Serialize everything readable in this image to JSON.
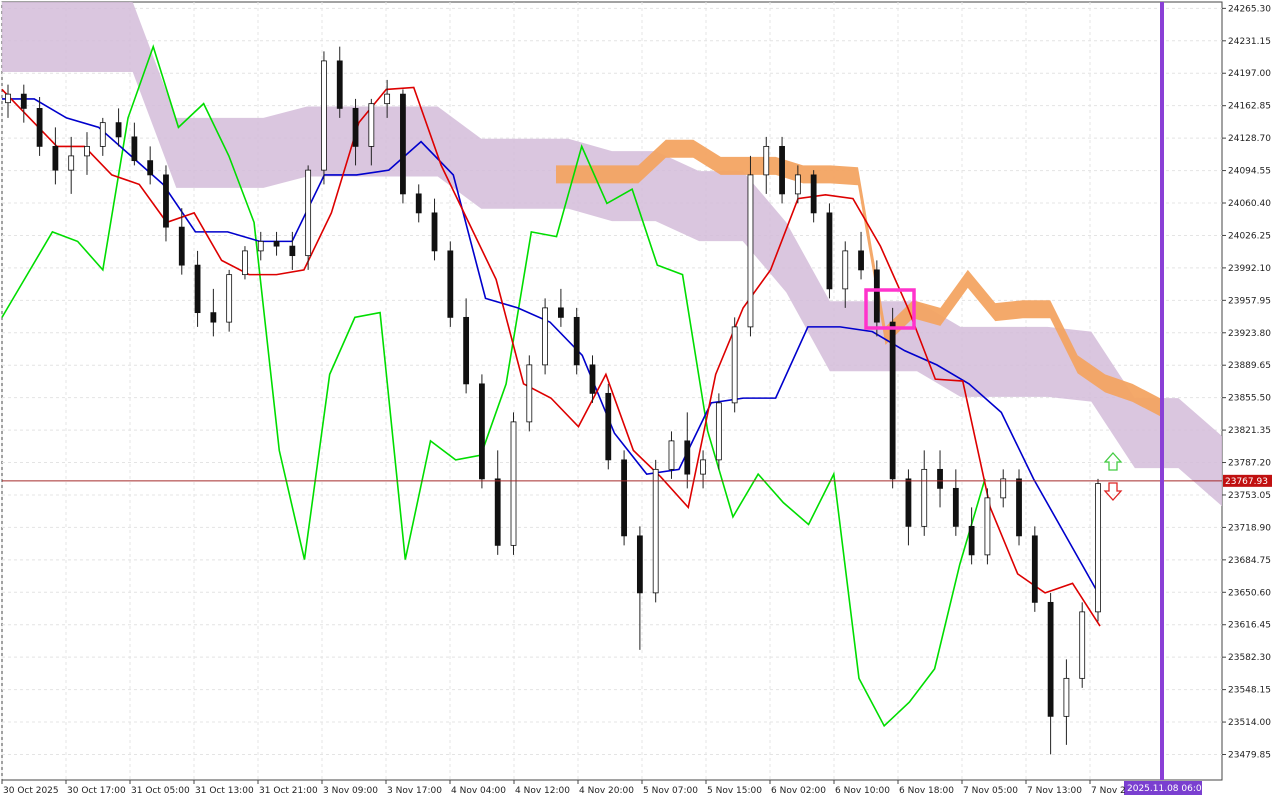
{
  "chart_data": {
    "type": "candlestick",
    "title": "",
    "y_axis_ticks": [
      "24265.30",
      "24231.15",
      "24197.00",
      "24162.85",
      "24128.70",
      "24094.55",
      "24060.40",
      "24026.25",
      "23992.10",
      "23957.95",
      "23923.80",
      "23889.65",
      "23855.50",
      "23821.35",
      "23787.20",
      "23753.05",
      "23718.90",
      "23684.75",
      "23650.60",
      "23616.45",
      "23582.30",
      "23548.15",
      "23514.00",
      "23479.85"
    ],
    "ylim": [
      23453,
      24272
    ],
    "x_axis_ticks": [
      "30 Oct 2025",
      "30 Oct 17:00",
      "31 Oct 05:00",
      "31 Oct 13:00",
      "31 Oct 21:00",
      "3 Nov 09:00",
      "3 Nov 17:00",
      "4 Nov 04:00",
      "4 Nov 12:00",
      "4 Nov 20:00",
      "5 Nov 07:00",
      "5 Nov 15:00",
      "6 Nov 02:00",
      "6 Nov 10:00",
      "6 Nov 18:00",
      "7 Nov 05:00",
      "7 Nov 13:00",
      "7 Nov 2"
    ],
    "current_price": "23767.93",
    "cursor_time_label": "2025.11.08 06:00",
    "grid": true,
    "series": [
      {
        "name": "tenkan",
        "color": "#dd0000",
        "values": [
          24180,
          24150,
          24120,
          24120,
          24090,
          24080,
          24040,
          24050,
          24000,
          23985,
          23985,
          23990,
          24050,
          24145,
          24180,
          24182,
          24100,
          24040,
          23980,
          23870,
          23855,
          23825,
          23880,
          23800,
          23772,
          23740,
          23880,
          23950,
          23990,
          24065,
          24069,
          24065,
          24015,
          23950,
          23875,
          23873,
          23740,
          23670,
          23650,
          23660,
          23615
        ]
      },
      {
        "name": "kijun",
        "color": "#0000cc",
        "values": [
          24170,
          24170,
          24150,
          24140,
          24110,
          24080,
          24030,
          24030,
          24020,
          24020,
          24090,
          24090,
          24095,
          24125,
          24090,
          23960,
          23950,
          23935,
          23900,
          23818,
          23775,
          23780,
          23850,
          23855,
          23855,
          23930,
          23930,
          23925,
          23905,
          23890,
          23870,
          23840,
          23770,
          23710,
          23650
        ]
      },
      {
        "name": "chikou",
        "color": "#00dd00",
        "values": [
          23940,
          23985,
          24030,
          24020,
          23990,
          24150,
          24225,
          24140,
          24165,
          24110,
          24040,
          23800,
          23685,
          23880,
          23940,
          23945,
          23685,
          23810,
          23790,
          23795,
          23870,
          24030,
          24025,
          24120,
          24060,
          24075,
          23995,
          23985,
          23820,
          23730,
          23775,
          23745,
          23722,
          23775,
          23560,
          23510,
          23535,
          23570,
          23680,
          23770
        ]
      },
      {
        "name": "senkou_a",
        "color": "#f3a462",
        "values": [
          24100,
          24100,
          24100,
          24100,
          24127,
          24127,
          24109,
          24109,
          24109,
          24100,
          24100,
          24098,
          23930,
          23958,
          23950,
          23990,
          23955,
          23958,
          23958,
          23900,
          23880,
          23870,
          23855
        ]
      },
      {
        "name": "senkou_b",
        "color": "#d3bcd9",
        "values": [
          24272,
          24272,
          24272,
          24272,
          24150,
          24150,
          24150,
          24162,
          24162,
          24162,
          24162,
          24128,
          24128,
          24128,
          24115,
          24115,
          24094,
          24094,
          24040,
          23957,
          23957,
          23957,
          23930,
          23930,
          23930,
          23925,
          23855,
          23855,
          23815
        ]
      }
    ],
    "candles_ohlc": [
      [
        24166,
        24185,
        24150,
        24175
      ],
      [
        24175,
        24185,
        24145,
        24160
      ],
      [
        24160,
        24172,
        24110,
        24120
      ],
      [
        24120,
        24140,
        24080,
        24095
      ],
      [
        24095,
        24130,
        24070,
        24110
      ],
      [
        24110,
        24135,
        24090,
        24120
      ],
      [
        24120,
        24150,
        24110,
        24145
      ],
      [
        24145,
        24160,
        24120,
        24130
      ],
      [
        24130,
        24145,
        24100,
        24105
      ],
      [
        24105,
        24120,
        24080,
        24090
      ],
      [
        24090,
        24100,
        24020,
        24035
      ],
      [
        24035,
        24055,
        23985,
        23995
      ],
      [
        23995,
        24010,
        23930,
        23945
      ],
      [
        23945,
        23970,
        23920,
        23935
      ],
      [
        23935,
        23990,
        23925,
        23985
      ],
      [
        23985,
        24015,
        23980,
        24010
      ],
      [
        24010,
        24030,
        24000,
        24020
      ],
      [
        24020,
        24030,
        24005,
        24015
      ],
      [
        24015,
        24030,
        23990,
        24005
      ],
      [
        24005,
        24100,
        23990,
        24095
      ],
      [
        24095,
        24220,
        24080,
        24210
      ],
      [
        24210,
        24225,
        24150,
        24160
      ],
      [
        24160,
        24170,
        24100,
        24120
      ],
      [
        24120,
        24170,
        24100,
        24165
      ],
      [
        24165,
        24190,
        24150,
        24175
      ],
      [
        24175,
        24180,
        24060,
        24070
      ],
      [
        24070,
        24080,
        24040,
        24050
      ],
      [
        24050,
        24065,
        24000,
        24010
      ],
      [
        24010,
        24020,
        23930,
        23940
      ],
      [
        23940,
        23960,
        23860,
        23870
      ],
      [
        23870,
        23880,
        23760,
        23770
      ],
      [
        23770,
        23800,
        23690,
        23700
      ],
      [
        23700,
        23840,
        23690,
        23830
      ],
      [
        23830,
        23900,
        23820,
        23890
      ],
      [
        23890,
        23960,
        23880,
        23950
      ],
      [
        23950,
        23970,
        23930,
        23940
      ],
      [
        23940,
        23950,
        23880,
        23890
      ],
      [
        23890,
        23900,
        23850,
        23860
      ],
      [
        23860,
        23870,
        23780,
        23790
      ],
      [
        23790,
        23800,
        23700,
        23710
      ],
      [
        23710,
        23720,
        23590,
        23650
      ],
      [
        23650,
        23790,
        23640,
        23780
      ],
      [
        23780,
        23820,
        23770,
        23810
      ],
      [
        23810,
        23840,
        23760,
        23775
      ],
      [
        23775,
        23800,
        23760,
        23790
      ],
      [
        23790,
        23860,
        23780,
        23850
      ],
      [
        23850,
        23940,
        23840,
        23930
      ],
      [
        23930,
        24110,
        23920,
        24090
      ],
      [
        24090,
        24130,
        24070,
        24120
      ],
      [
        24120,
        24130,
        24060,
        24070
      ],
      [
        24070,
        24100,
        24060,
        24090
      ],
      [
        24090,
        24095,
        24040,
        24050
      ],
      [
        24050,
        24060,
        23960,
        23970
      ],
      [
        23970,
        24020,
        23950,
        24010
      ],
      [
        24010,
        24030,
        23980,
        23990
      ],
      [
        23990,
        24000,
        23920,
        23935
      ],
      [
        23935,
        23950,
        23760,
        23770
      ],
      [
        23770,
        23780,
        23700,
        23720
      ],
      [
        23720,
        23800,
        23710,
        23780
      ],
      [
        23780,
        23800,
        23740,
        23760
      ],
      [
        23760,
        23780,
        23710,
        23720
      ],
      [
        23720,
        23740,
        23680,
        23690
      ],
      [
        23690,
        23760,
        23680,
        23750
      ],
      [
        23750,
        23780,
        23740,
        23770
      ],
      [
        23770,
        23780,
        23700,
        23710
      ],
      [
        23710,
        23720,
        23630,
        23640
      ],
      [
        23640,
        23650,
        23480,
        23520
      ],
      [
        23520,
        23580,
        23490,
        23560
      ],
      [
        23560,
        23640,
        23550,
        23630
      ],
      [
        23630,
        23770,
        23620,
        23765
      ]
    ]
  },
  "labels": {
    "price_tag": "23767.93",
    "time_tag": "2025.11.08 06:00"
  }
}
